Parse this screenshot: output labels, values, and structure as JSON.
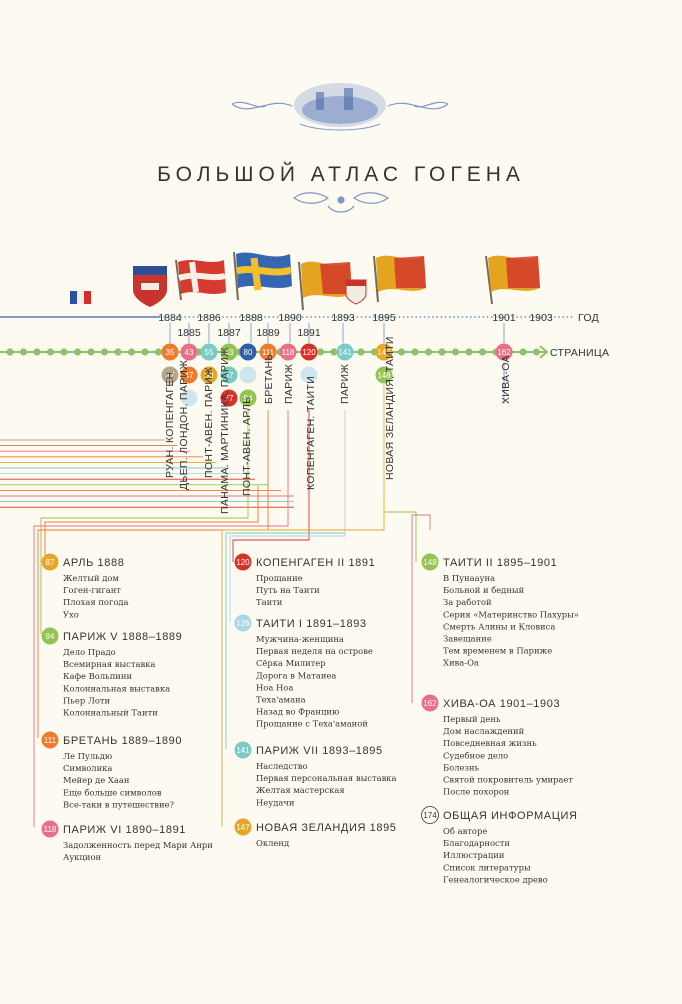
{
  "title": "БОЛЬШОЙ АТЛАС ГОГЕНА",
  "axis": {
    "year_label": "ГОД",
    "page_label": "СТРАНИЦА"
  },
  "years_upper": [
    "1884",
    "1886",
    "1888",
    "1890",
    "1893",
    "1895",
    "1901",
    "1903"
  ],
  "years_lower": [
    "1885",
    "1887",
    "1889",
    "1891"
  ],
  "page_badges": [
    "35",
    "43",
    "55",
    "63",
    "80",
    "111",
    "118",
    "120",
    "141",
    "147",
    "162"
  ],
  "sub_badges": [
    "37",
    "47",
    "59",
    "67",
    "77",
    "94",
    "148"
  ],
  "vertical_labels": [
    "РУАН. КОПЕНГАГЕН",
    "ДЬЕП. ЛОНДОН. ПАРИЖ",
    "ПОНТ-АВЕН. ПАРИЖ",
    "ПАНАМА. МАРТИНИКА. ПАРИЖ",
    "ПОНТ-АВЕН. АРЛЬ",
    "БРЕТАНЬ",
    "ПАРИЖ",
    "КОПЕНГАГЕН. ТАИТИ",
    "ПАРИЖ",
    "НОВАЯ ЗЕЛАНДИЯ, ТАИТИ",
    "ХИВА-ОА"
  ],
  "sections": [
    {
      "page": "87",
      "title": "АРЛЬ 1888",
      "items": [
        "Желтый дом",
        "Гоген-гигант",
        "Плохая погода",
        "Ухо"
      ]
    },
    {
      "page": "94",
      "title": "ПАРИЖ V 1888–1889",
      "items": [
        "Дело Прадо",
        "Всемирная выставка",
        "Кафе Вольпини",
        "Колониальная выставка",
        "Пьер Лоти",
        "Колониальный Таити"
      ]
    },
    {
      "page": "111",
      "title": "БРЕТАНЬ 1889–1890",
      "items": [
        "Ле Пульдю",
        "Символика",
        "Мейер де Хаан",
        "Еще больше символов",
        "Все-таки в путешествие?"
      ]
    },
    {
      "page": "118",
      "title": "ПАРИЖ VI 1890–1891",
      "items": [
        "Задолженность перед Мари Анри",
        "Аукцион"
      ]
    },
    {
      "page": "120",
      "title": "КОПЕНГАГЕН II 1891",
      "items": [
        "Прощание",
        "Путь на Таити",
        "Таити"
      ]
    },
    {
      "page": "126",
      "title": "ТАИТИ I 1891–1893",
      "items": [
        "Мужчина-женщина",
        "Первая неделя на острове",
        "Сёрка Милитер",
        "Дорога в Матаиеа",
        "Ноа Ноа",
        "Теха'амана",
        "Назад во Францию",
        "Прощание с Теха'аманой"
      ]
    },
    {
      "page": "141",
      "title": "ПАРИЖ VII 1893–1895",
      "items": [
        "Наследство",
        "Первая персональная выставка",
        "Желтая мастерская",
        "Неудачи"
      ]
    },
    {
      "page": "147",
      "title": "НОВАЯ ЗЕЛАНДИЯ 1895",
      "items": [
        "Окленд"
      ]
    },
    {
      "page": "148",
      "title": "ТАИТИ II 1895–1901",
      "items": [
        "В Пунаауна",
        "Больной и бедный",
        "За работой",
        "Серия «Материнство Пахуры»",
        "Смерть Алины и Кловиса",
        "Завещание",
        "Тем временем в Париже",
        "Хива-Оа"
      ]
    },
    {
      "page": "162",
      "title": "ХИВА-ОА 1901–1903",
      "items": [
        "Первый день",
        "Дом наслаждений",
        "Повседневная жизнь",
        "Судебное дело",
        "Болезнь",
        "Святой покровитель умирает",
        "После похорон"
      ]
    },
    {
      "page": "174",
      "title": "ОБЩАЯ ИНФОРМАЦИЯ",
      "items": [
        "Об авторе",
        "Благодарности",
        "Иллюстрации",
        "Список литературы",
        "Генеалогическое древо"
      ]
    }
  ],
  "colors": {
    "background": "#fdfbf1",
    "timeline_green": "#8dc26a",
    "orange": "#ee7a2e",
    "red": "#d6322a",
    "pink": "#e86f85",
    "teal": "#79cbc4",
    "blue": "#2f5fa8",
    "mustard": "#e6a626",
    "lime": "#93c352",
    "sky": "#a9d6ea",
    "beige": "#b7a78a"
  }
}
